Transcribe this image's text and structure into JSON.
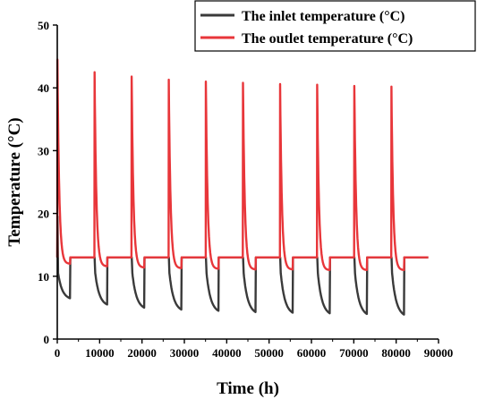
{
  "chart_data": {
    "type": "line",
    "xlabel": "Time (h)",
    "ylabel": "Temperature (°C)",
    "xlim": [
      0,
      90000
    ],
    "ylim": [
      0,
      50
    ],
    "xticks": [
      0,
      10000,
      20000,
      30000,
      40000,
      50000,
      60000,
      70000,
      80000,
      90000
    ],
    "yticks": [
      0,
      10,
      20,
      30,
      40,
      50
    ],
    "grid": false,
    "legend_position": "top-right",
    "series": [
      {
        "name": "The inlet temperature  (°C)",
        "color": "#3a3a3a",
        "cycles": [
          {
            "start": 0,
            "peak": 13.5,
            "low": 6.5
          },
          {
            "start": 8760,
            "peak": 13.0,
            "low": 5.5
          },
          {
            "start": 17520,
            "peak": 13.0,
            "low": 5.0
          },
          {
            "start": 26280,
            "peak": 13.0,
            "low": 4.7
          },
          {
            "start": 35040,
            "peak": 13.0,
            "low": 4.5
          },
          {
            "start": 43800,
            "peak": 13.0,
            "low": 4.3
          },
          {
            "start": 52560,
            "peak": 13.0,
            "low": 4.2
          },
          {
            "start": 61320,
            "peak": 13.0,
            "low": 4.1
          },
          {
            "start": 70080,
            "peak": 13.0,
            "low": 4.0
          },
          {
            "start": 78840,
            "peak": 13.0,
            "low": 3.9
          }
        ]
      },
      {
        "name": "The outlet temperature (°C)",
        "color": "#e8363a",
        "cycles": [
          {
            "start": 0,
            "peak": 44.5,
            "low": 12.0
          },
          {
            "start": 8760,
            "peak": 42.5,
            "low": 11.6
          },
          {
            "start": 17520,
            "peak": 41.8,
            "low": 11.4
          },
          {
            "start": 26280,
            "peak": 41.3,
            "low": 11.3
          },
          {
            "start": 35040,
            "peak": 41.0,
            "low": 11.2
          },
          {
            "start": 43800,
            "peak": 40.8,
            "low": 11.1
          },
          {
            "start": 52560,
            "peak": 40.6,
            "low": 11.1
          },
          {
            "start": 61320,
            "peak": 40.5,
            "low": 11.0
          },
          {
            "start": 70080,
            "peak": 40.3,
            "low": 11.0
          },
          {
            "start": 78840,
            "peak": 40.2,
            "low": 11.0
          }
        ],
        "steady_value": 13.0,
        "end_x": 87600
      }
    ]
  }
}
